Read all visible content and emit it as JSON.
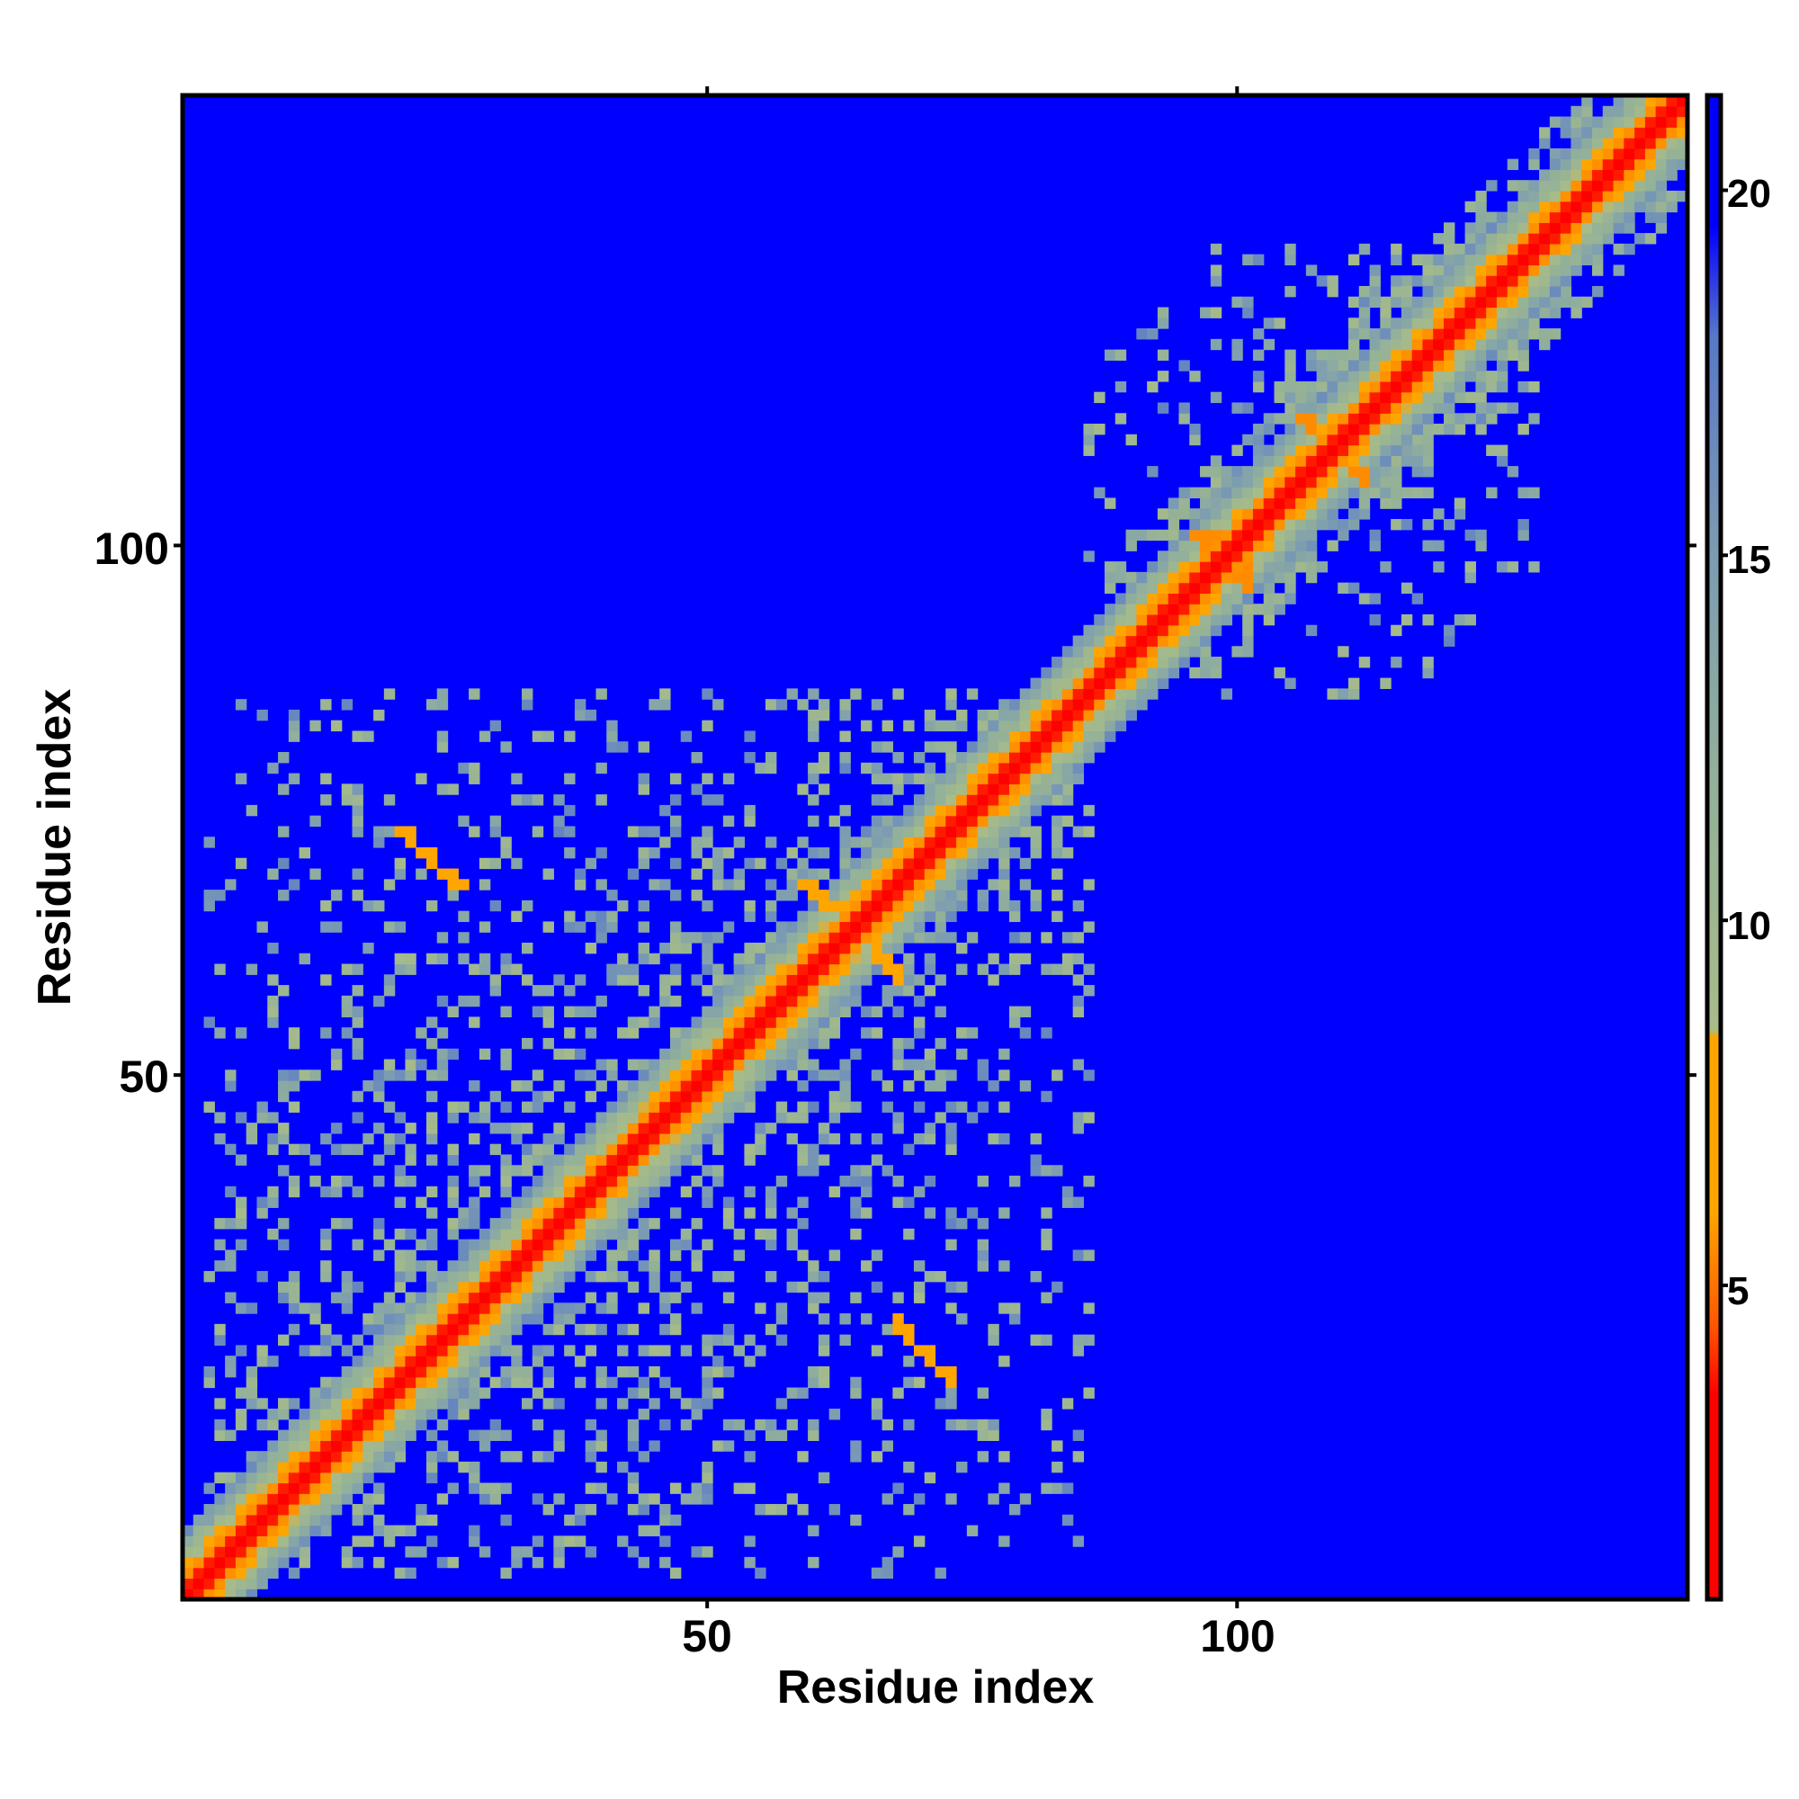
{
  "chart_data": {
    "type": "heatmap",
    "title": "",
    "xlabel": "Residue index",
    "ylabel": "Residue index",
    "n_residues": 142,
    "xlim": [
      0.5,
      142.5
    ],
    "ylim": [
      0.5,
      142.5
    ],
    "x_ticks": [
      50,
      100
    ],
    "y_ticks": [
      50,
      100
    ],
    "x_tick_labels": [
      "50",
      "100"
    ],
    "y_tick_labels": [
      "50",
      "100"
    ],
    "symmetric": true,
    "colorbar": {
      "range": [
        0.7,
        21.3
      ],
      "ticks": [
        5,
        10,
        15,
        20
      ],
      "tick_labels": [
        "5",
        "10",
        "15",
        "20"
      ],
      "stops": [
        [
          0.7,
          "#ff0000"
        ],
        [
          3.5,
          "#ff0000"
        ],
        [
          4.5,
          "#ff5a00"
        ],
        [
          6,
          "#ffa500"
        ],
        [
          8.4,
          "#ffa500"
        ],
        [
          8.5,
          "#a8bc88"
        ],
        [
          12,
          "#92b09a"
        ],
        [
          15,
          "#7c9cb2"
        ],
        [
          18,
          "#5878c8"
        ],
        [
          19.5,
          "#0000ff"
        ],
        [
          21.3,
          "#0000ff"
        ]
      ]
    },
    "background_value": 21,
    "diagonal_profile": {
      "offsets": [
        0,
        1,
        2,
        3,
        4,
        5,
        6
      ],
      "values": [
        2.0,
        3.8,
        5.6,
        8.0,
        10.5,
        12.5,
        15.0
      ]
    },
    "strands": [
      {
        "pairs": [
          [
            21,
            73
          ],
          [
            22,
            73
          ],
          [
            22,
            72
          ],
          [
            23,
            71
          ],
          [
            24,
            71
          ],
          [
            24,
            70
          ],
          [
            25,
            69
          ],
          [
            26,
            69
          ],
          [
            26,
            68
          ],
          [
            27,
            68
          ]
        ],
        "value": 6.2
      },
      {
        "pairs": [
          [
            59,
            68
          ],
          [
            60,
            67
          ],
          [
            61,
            67
          ],
          [
            61,
            66
          ],
          [
            62,
            66
          ],
          [
            66,
            62
          ],
          [
            66,
            61
          ],
          [
            67,
            60
          ],
          [
            68,
            59
          ],
          [
            68,
            60
          ]
        ],
        "value": 6.0
      },
      {
        "pairs": [
          [
            96,
            101
          ],
          [
            97,
            100
          ],
          [
            97,
            101
          ],
          [
            98,
            101
          ],
          [
            106,
            112
          ],
          [
            107,
            112
          ],
          [
            107,
            111
          ]
        ],
        "value": 5.5
      }
    ],
    "contact_regions": [
      {
        "residues": [
          3,
          86
        ],
        "min_offset": 7,
        "density": 0.34,
        "decay": 28,
        "floor": 0.05,
        "value_range": [
          9,
          17
        ]
      },
      {
        "residues": [
          86,
          128
        ],
        "min_offset": 7,
        "max_offset": 30,
        "density": 0.22,
        "decay": 40,
        "floor": 0.02,
        "value_range": [
          9,
          17
        ]
      },
      {
        "residues": [
          88,
          142
        ],
        "min_offset": 7,
        "max_offset": 10,
        "density": 0.55,
        "decay": 100,
        "floor": 0.0,
        "value_range": [
          10,
          16
        ]
      }
    ]
  }
}
